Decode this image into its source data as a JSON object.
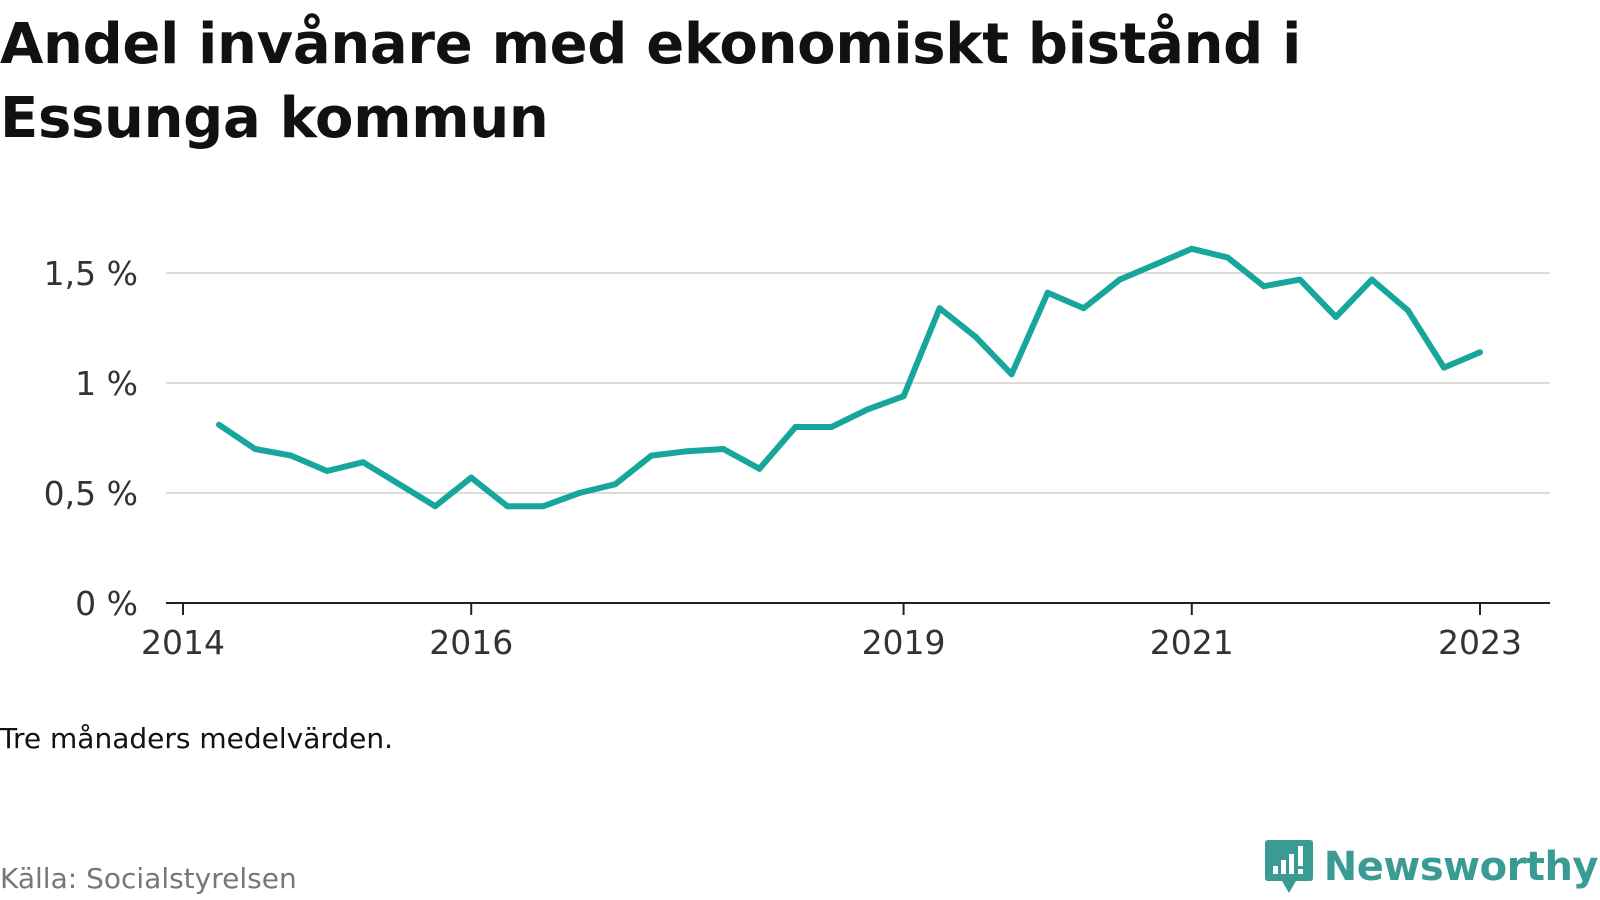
{
  "title": "Andel invånare med ekonomiskt bistånd i Essunga kommun",
  "note": "Tre månaders medelvärden.",
  "source": "Källa: Socialstyrelsen",
  "brand": {
    "name": "Newsworthy",
    "icon": "newsworthy-logo-icon",
    "color": "#3a9a94"
  },
  "chart_data": {
    "type": "line",
    "title": "Andel invånare med ekonomiskt bistånd i Essunga kommun",
    "xlabel": "",
    "ylabel": "",
    "ylim": [
      0,
      1.5
    ],
    "yticks": [
      {
        "value": 0,
        "label": "0 %"
      },
      {
        "value": 0.5,
        "label": "0,5 %"
      },
      {
        "value": 1,
        "label": "1 %"
      },
      {
        "value": 1.5,
        "label": "1,5 %"
      }
    ],
    "xticks": [
      {
        "value": "2014-01",
        "label": "2014"
      },
      {
        "value": "2016-01",
        "label": "2016"
      },
      {
        "value": "2019-01",
        "label": "2019"
      },
      {
        "value": "2021-01",
        "label": "2021"
      },
      {
        "value": "2023-01",
        "label": "2023"
      }
    ],
    "xlim": [
      "2014-01",
      "2024-06"
    ],
    "grid": true,
    "line_color": "#17a69c",
    "series": [
      {
        "x": [
          "2014-04",
          "2014-07",
          "2014-10",
          "2015-01",
          "2015-04",
          "2015-07",
          "2015-10",
          "2016-01",
          "2016-04",
          "2016-07",
          "2016-10",
          "2017-01",
          "2017-04",
          "2017-07",
          "2017-10",
          "2018-01",
          "2018-04",
          "2018-07",
          "2018-10",
          "2019-01",
          "2019-04",
          "2019-07",
          "2019-10",
          "2020-01",
          "2020-04",
          "2020-07",
          "2020-10",
          "2021-01",
          "2021-04",
          "2021-07",
          "2021-10",
          "2022-01",
          "2022-04",
          "2022-07",
          "2022-10",
          "2023-01"
        ],
        "values": [
          0.81,
          0.7,
          0.67,
          0.6,
          0.64,
          0.54,
          0.44,
          0.57,
          0.44,
          0.44,
          0.5,
          0.54,
          0.67,
          0.69,
          0.7,
          0.61,
          0.8,
          0.8,
          0.88,
          0.94,
          1.34,
          1.21,
          1.04,
          1.41,
          1.34,
          1.47,
          1.54,
          1.61,
          1.57,
          1.44,
          1.47,
          1.3,
          1.47,
          1.33,
          1.07,
          1.14
        ]
      }
    ]
  }
}
